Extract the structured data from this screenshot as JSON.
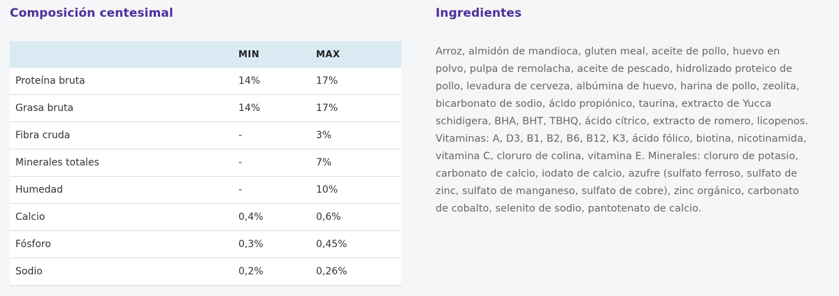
{
  "composition": {
    "title": "Composición centesimal",
    "headers": [
      "",
      "MIN",
      "MAX"
    ],
    "rows": [
      {
        "name": "Proteína bruta",
        "min": "14%",
        "max": "17%"
      },
      {
        "name": "Grasa bruta",
        "min": "14%",
        "max": "17%"
      },
      {
        "name": "Fibra cruda",
        "min": "-",
        "max": "3%"
      },
      {
        "name": "Minerales totales",
        "min": "-",
        "max": "7%"
      },
      {
        "name": "Humedad",
        "min": "-",
        "max": "10%"
      },
      {
        "name": "Calcio",
        "min": "0,4%",
        "max": "0,6%"
      },
      {
        "name": "Fósforo",
        "min": "0,3%",
        "max": "0,45%"
      },
      {
        "name": "Sodio",
        "min": "0,2%",
        "max": "0,26%"
      }
    ]
  },
  "ingredients": {
    "title": "Ingredientes",
    "text": "Arroz, almidón de mandioca, gluten meal, aceite de pollo, huevo en polvo, pulpa de remolacha, aceite de pescado, hidrolizado proteico de pollo, levadura de cerveza, albúmina de huevo, harina de pollo, zeolita, bicarbonato de sodio, ácido propiónico, taurina, extracto de Yucca schidigera, BHA, BHT, TBHQ, ácido cítrico, extracto de romero, licopenos. Vitaminas: A, D3, B1, B2, B6, B12, K3, ácido fólico, biotina, nicotinamida, vitamina C, cloruro de colina, vitamina E. Minerales: cloruro de potasio, carbonato de calcio, iodato de calcio, azufre (sulfato ferroso, sulfato de zinc, sulfato de manganeso, sulfato de cobre), zinc orgánico, carbonato de cobalto, selenito de sodio, pantotenato de calcio."
  },
  "colors": {
    "title": "#4b2f9c",
    "header_bg": "#d9eaf3",
    "row_bg": "#ffffff",
    "page_bg": "#f5f6f7"
  }
}
